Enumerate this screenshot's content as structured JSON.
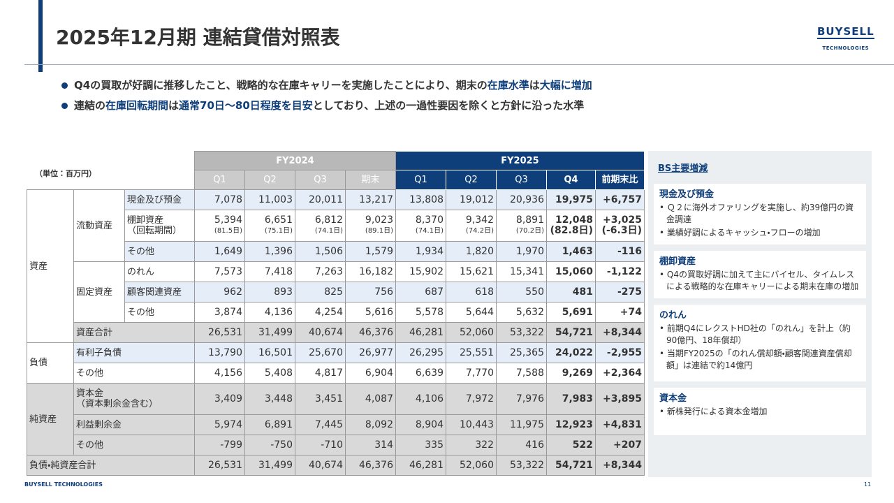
{
  "header": {
    "title": "2025年12月期 連結貸借対照表",
    "logo": "BUYSELL",
    "logo_sub": "TECHNOLOGIES"
  },
  "bullets": [
    [
      {
        "text": "Q4の買取が好調に推移したこと、戦略的な在庫キャリーを実施したことにより、期末の"
      },
      {
        "text": "在庫水準",
        "em": true
      },
      {
        "text": "は"
      },
      {
        "text": "大幅に増加",
        "em": true
      }
    ],
    [
      {
        "text": "連結の"
      },
      {
        "text": "在庫回転期間",
        "em": true
      },
      {
        "text": "は"
      },
      {
        "text": "通常70日～80日程度を目安",
        "em": true
      },
      {
        "text": "としており、上述の一過性要因を除くと方針に沿った水準"
      }
    ]
  ],
  "table": {
    "unit": "（単位：百万円）",
    "groups": [
      "FY2024",
      "FY2025"
    ],
    "columns": [
      "Q1",
      "Q2",
      "Q3",
      "期末",
      "Q1",
      "Q2",
      "Q3",
      "Q4",
      "前期末比"
    ],
    "sections": [
      {
        "label": "資産",
        "groups": [
          {
            "label": "流動資産",
            "items": [
              {
                "label": "現金及び預金",
                "values": [
                  "7,078",
                  "11,003",
                  "20,011",
                  "13,217",
                  "13,808",
                  "19,012",
                  "20,936",
                  "19,975",
                  "+6,757"
                ]
              },
              {
                "label": "棚卸資産",
                "sublabel": "（回転期間）",
                "values": [
                  "5,394",
                  "6,651",
                  "6,812",
                  "9,023",
                  "8,370",
                  "9,342",
                  "8,891",
                  "12,048",
                  "+3,025"
                ],
                "days": [
                  "(81.5日)",
                  "(75.1日)",
                  "(74.1日)",
                  "(89.1日)",
                  "(74.1日)",
                  "(74.2日)",
                  "(70.2日)",
                  "(82.8日)",
                  "(-6.3日)"
                ]
              },
              {
                "label": "その他",
                "values": [
                  "1,649",
                  "1,396",
                  "1,506",
                  "1,579",
                  "1,934",
                  "1,820",
                  "1,970",
                  "1,463",
                  "-116"
                ]
              }
            ]
          },
          {
            "label": "固定資産",
            "items": [
              {
                "label": "のれん",
                "values": [
                  "7,573",
                  "7,418",
                  "7,263",
                  "16,182",
                  "15,902",
                  "15,621",
                  "15,341",
                  "15,060",
                  "-1,122"
                ]
              },
              {
                "label": "顧客関連資産",
                "values": [
                  "962",
                  "893",
                  "825",
                  "756",
                  "687",
                  "618",
                  "550",
                  "481",
                  "-275"
                ]
              },
              {
                "label": "その他",
                "values": [
                  "3,874",
                  "4,136",
                  "4,254",
                  "5,616",
                  "5,578",
                  "5,644",
                  "5,632",
                  "5,691",
                  "+74"
                ]
              }
            ]
          },
          {
            "label": "資産合計",
            "values": [
              "26,531",
              "31,499",
              "40,674",
              "46,376",
              "46,281",
              "52,060",
              "53,322",
              "54,721",
              "+8,344"
            ]
          }
        ]
      },
      {
        "label": "負債",
        "groups": [
          {
            "label": "有利子負債",
            "values": [
              "13,790",
              "16,501",
              "25,670",
              "26,977",
              "26,295",
              "25,551",
              "25,365",
              "24,022",
              "-2,955"
            ]
          },
          {
            "label": "その他",
            "values": [
              "4,156",
              "5,408",
              "4,817",
              "6,904",
              "6,639",
              "7,770",
              "7,588",
              "9,269",
              "+2,364"
            ]
          }
        ]
      },
      {
        "label": "純資産",
        "groups": [
          {
            "label": "資本金",
            "sublabel": "（資本剰余金含む）",
            "values": [
              "3,409",
              "3,448",
              "3,451",
              "4,087",
              "4,106",
              "7,972",
              "7,976",
              "7,983",
              "+3,895"
            ]
          },
          {
            "label": "利益剰余金",
            "values": [
              "5,974",
              "6,891",
              "7,445",
              "8,092",
              "8,904",
              "10,443",
              "11,975",
              "12,923",
              "+4,831"
            ]
          },
          {
            "label": "その他",
            "values": [
              "-799",
              "-750",
              "-710",
              "314",
              "335",
              "322",
              "416",
              "522",
              "+207"
            ]
          }
        ]
      }
    ],
    "total": {
      "label": "負債・純資産合計",
      "values": [
        "26,531",
        "31,499",
        "40,674",
        "46,376",
        "46,281",
        "52,060",
        "53,322",
        "54,721",
        "+8,344"
      ]
    }
  },
  "side": {
    "title": "BS主要増減",
    "sections": [
      {
        "heading": "現金及び預金",
        "bullets": [
          "Ｑ２に海外オファリングを実施し、約39億円の資金調達",
          "業績好調によるキャッシュ・フローの増加"
        ]
      },
      {
        "heading": "棚卸資産",
        "bullets": [
          "Q4の買取好調に加えて主にバイセル、タイムレスによる戦略的な在庫キャリーによる期末在庫の増加"
        ]
      },
      {
        "heading": "のれん",
        "bullets": [
          "前期Q4にレクストHD社の「のれん」を計上（約90億円、18年償却）",
          "当期FY2025の「のれん償却額・顧客関連資産償却額」は連結で約14億円"
        ]
      },
      {
        "heading": "資本金",
        "bullets": [
          "新株発行による資本金増加"
        ]
      }
    ]
  },
  "footer": {
    "company": "BUYSELL TECHNOLOGIES",
    "page": "11"
  }
}
